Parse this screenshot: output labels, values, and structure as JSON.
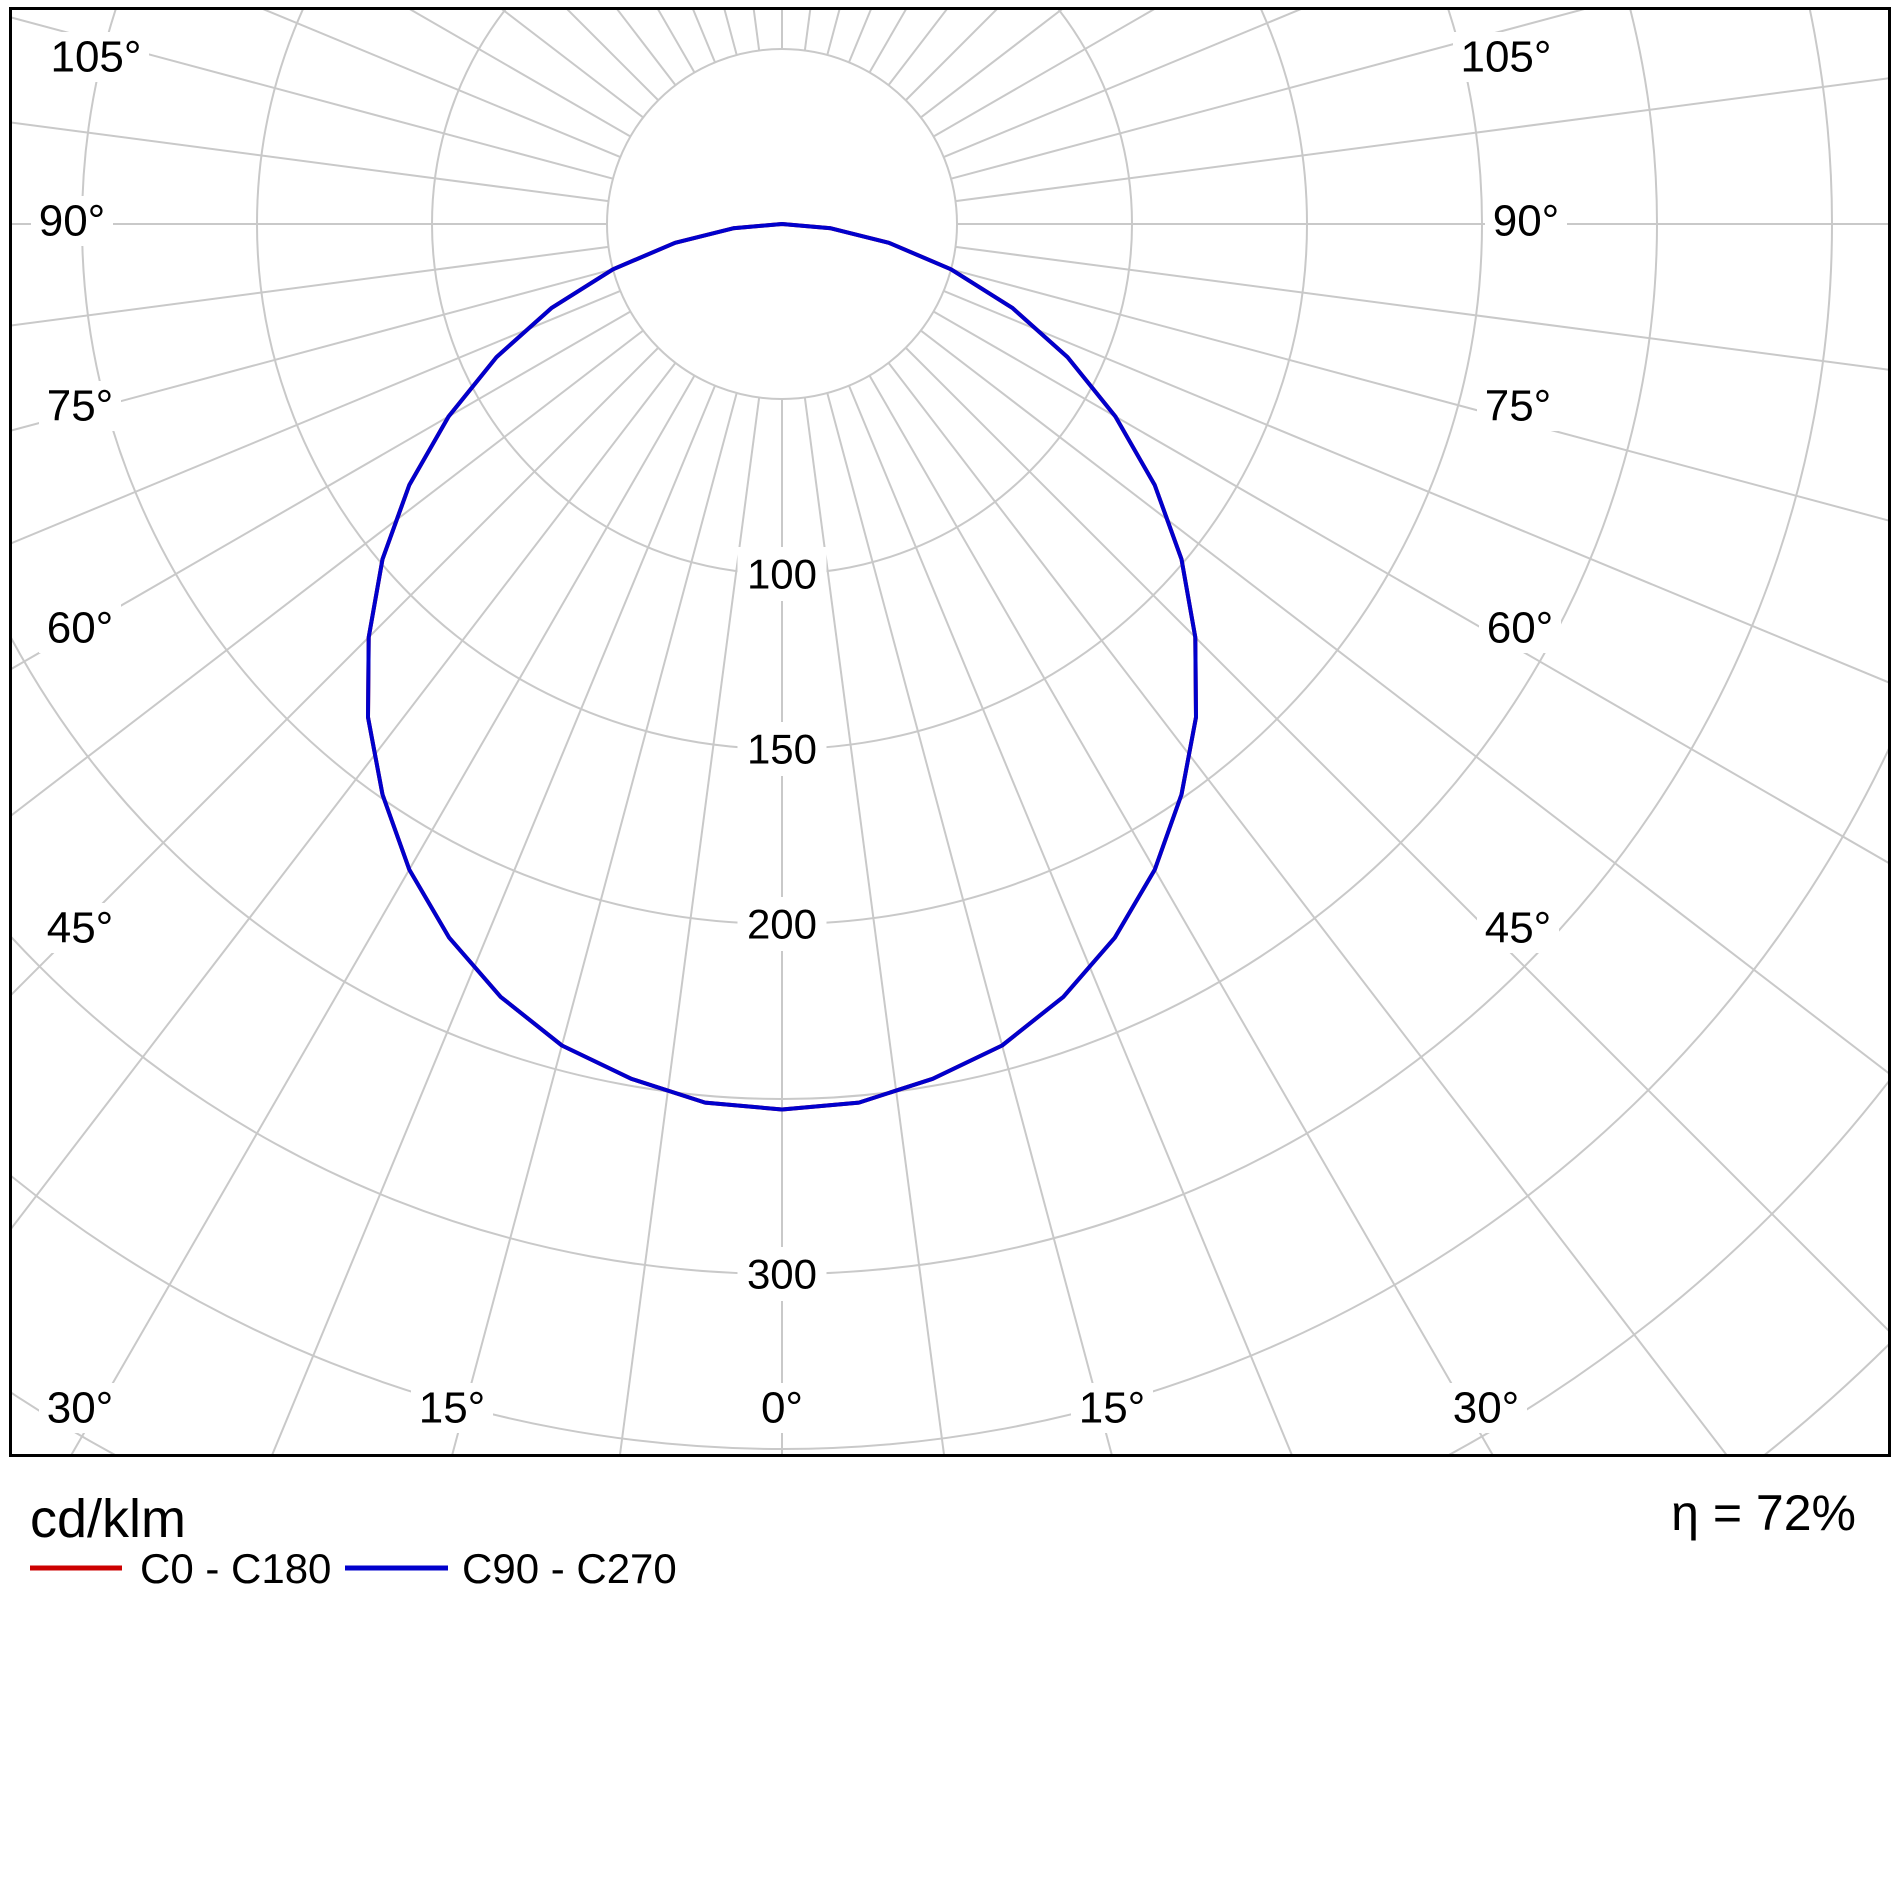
{
  "page": {
    "background": "#ffffff",
    "grid_color": "#c9c9c9",
    "border_color": "#000000"
  },
  "footer": {
    "units_label": "cd/klm",
    "efficiency_label": "η = 72%",
    "legend": [
      {
        "label": "C0 - C180",
        "color": "#cc0000"
      },
      {
        "label": "C90 - C270",
        "color": "#0000cc"
      }
    ]
  },
  "chart_data": {
    "type": "line",
    "subtype": "polar_luminous_intensity_distribution",
    "title": "",
    "units": "cd/klm",
    "efficiency_percent": 72,
    "grid_color": "#c9c9c9",
    "angle_axis": {
      "tick_labels": [
        "0°",
        "15°",
        "30°",
        "45°",
        "60°",
        "75°",
        "90°",
        "105°"
      ],
      "grid_step_deg": 7.5,
      "range_deg": [
        -105,
        105
      ]
    },
    "radial_axis": {
      "units": "cd/klm",
      "circle_values": [
        50,
        100,
        150,
        200,
        250,
        300,
        350,
        400,
        450
      ],
      "labeled_values": [
        "100",
        "150",
        "200",
        "300"
      ]
    },
    "series": [
      {
        "name": "C0 - C180",
        "color": "#cc0000",
        "symmetric": true,
        "gamma_deg": [
          0,
          5,
          10,
          15,
          20,
          25,
          30,
          35,
          40,
          45,
          50,
          55,
          60,
          65,
          70,
          75,
          80,
          85,
          90
        ],
        "cd_per_klm": [
          253,
          252,
          248,
          243,
          235,
          225,
          213,
          199,
          184,
          167,
          149,
          130,
          110,
          90,
          70,
          50,
          31,
          14,
          0
        ]
      },
      {
        "name": "C90 - C270",
        "color": "#0000cc",
        "symmetric": true,
        "gamma_deg": [
          0,
          5,
          10,
          15,
          20,
          25,
          30,
          35,
          40,
          45,
          50,
          55,
          60,
          65,
          70,
          75,
          80,
          85,
          90
        ],
        "cd_per_klm": [
          253,
          252,
          248,
          243,
          235,
          225,
          213,
          199,
          184,
          167,
          149,
          130,
          110,
          90,
          70,
          50,
          31,
          14,
          0
        ]
      }
    ]
  }
}
